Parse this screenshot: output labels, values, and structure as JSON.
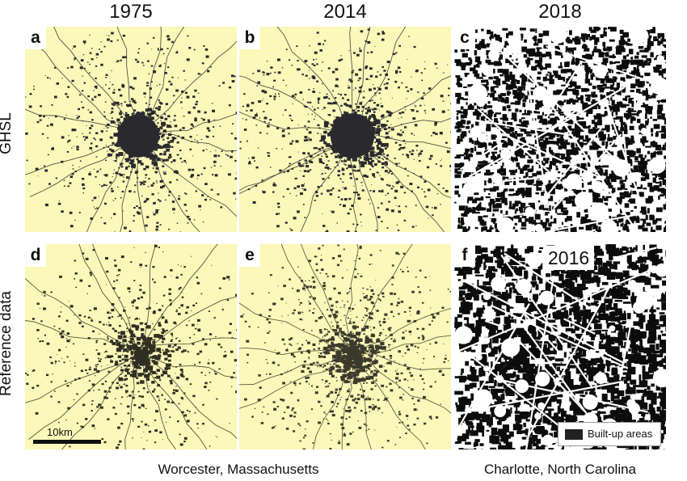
{
  "columns": [
    {
      "year": "1975"
    },
    {
      "year": "2014"
    },
    {
      "year": "2018"
    }
  ],
  "rows": [
    {
      "label": "GHSL"
    },
    {
      "label": "Reference data"
    }
  ],
  "panels": [
    {
      "letter": "a",
      "background": "#fbf8b9",
      "ink": "#2a2a2e",
      "density": 0.55
    },
    {
      "letter": "b",
      "background": "#fbf8b9",
      "ink": "#2a2a2e",
      "density": 0.65
    },
    {
      "letter": "c",
      "background": "#ffffff",
      "ink": "#0c0c0c",
      "density": 1.0
    },
    {
      "letter": "d",
      "background": "#fbf8b9",
      "ink": "#2f2f22",
      "density": 0.45
    },
    {
      "letter": "e",
      "background": "#fbf8b9",
      "ink": "#3b3b2c",
      "density": 0.55
    },
    {
      "letter": "f",
      "background": "#ffffff",
      "ink": "#0c0c0c",
      "density": 1.0
    }
  ],
  "inset_year": "2016",
  "legend": {
    "label": "Built-up areas",
    "color": "#222222"
  },
  "scale_bar": {
    "label": "10km"
  },
  "captions": {
    "left": "Worcester, Massachusetts",
    "right": "Charlotte, North Carolina"
  }
}
